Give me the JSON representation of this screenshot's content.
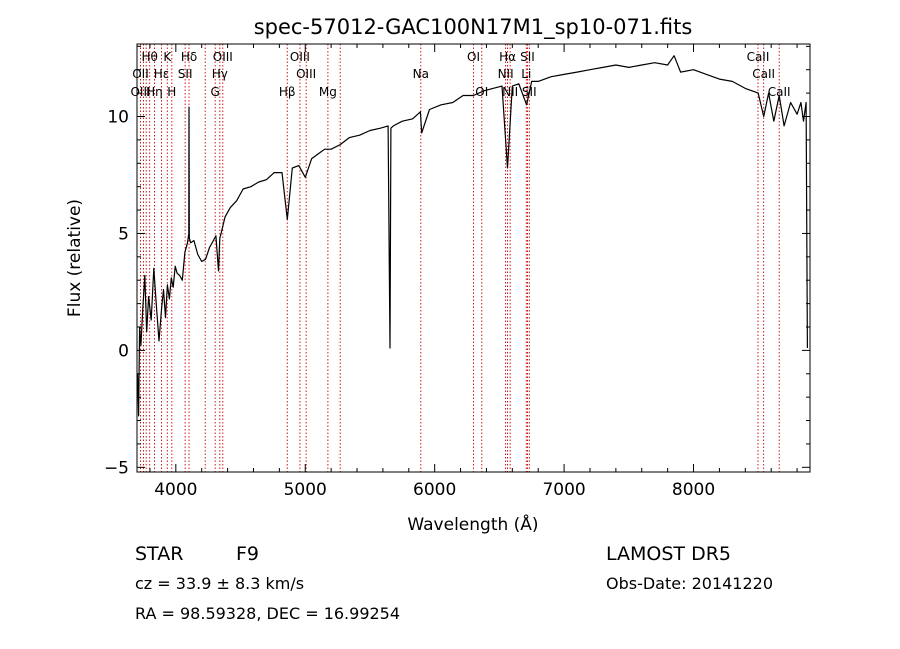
{
  "chart_data": {
    "type": "line",
    "title": "spec-57012-GAC100N17M1_sp10-071.fits",
    "xlabel": "Wavelength (Å)",
    "ylabel": "Flux (relative)",
    "xlim": [
      3700,
      8900
    ],
    "ylim": [
      -5.2,
      13.1
    ],
    "xticks": [
      4000,
      5000,
      6000,
      7000,
      8000
    ],
    "xtick_labels": [
      "4000",
      "5000",
      "6000",
      "7000",
      "8000"
    ],
    "yticks": [
      -5,
      0,
      5,
      10
    ],
    "ytick_labels": [
      "−5",
      "0",
      "5",
      "10"
    ],
    "series": [
      {
        "x": [
          3705,
          3712,
          3720,
          3730,
          3745,
          3760,
          3775,
          3790,
          3810,
          3830,
          3850,
          3870,
          3890,
          3905,
          3920,
          3935,
          3950,
          3965,
          3980,
          3995,
          4010,
          4030,
          4050,
          4070,
          4090,
          4100,
          4102,
          4104,
          4115,
          4140,
          4170,
          4200,
          4230,
          4260,
          4290,
          4310,
          4330,
          4340,
          4350,
          4380,
          4420,
          4470,
          4520,
          4580,
          4640,
          4700,
          4760,
          4820,
          4861,
          4900,
          4950,
          5000,
          5050,
          5100,
          5150,
          5200,
          5270,
          5340,
          5420,
          5500,
          5580,
          5640,
          5655,
          5662,
          5680,
          5750,
          5830,
          5890,
          5900,
          5960,
          6050,
          6140,
          6220,
          6300,
          6380,
          6450,
          6520,
          6563,
          6600,
          6650,
          6710,
          6750,
          6800,
          6900,
          7000,
          7100,
          7200,
          7300,
          7400,
          7500,
          7600,
          7700,
          7800,
          7850,
          7900,
          8000,
          8100,
          8200,
          8300,
          8400,
          8500,
          8542,
          8580,
          8620,
          8662,
          8700,
          8750,
          8800,
          8830,
          8850,
          8870,
          8880
        ],
        "y": [
          -1.0,
          -2.8,
          1.0,
          0.2,
          1.8,
          3.2,
          0.8,
          2.3,
          1.3,
          3.5,
          1.9,
          0.4,
          1.8,
          2.6,
          1.4,
          2.8,
          2.2,
          3.1,
          2.7,
          3.6,
          3.3,
          3.2,
          3.0,
          4.2,
          4.6,
          5.0,
          10.4,
          4.8,
          4.6,
          4.7,
          4.1,
          3.8,
          3.9,
          4.4,
          4.7,
          4.9,
          3.4,
          4.8,
          5.0,
          5.7,
          6.1,
          6.4,
          6.9,
          7.0,
          7.2,
          7.3,
          7.6,
          7.6,
          5.6,
          7.8,
          7.9,
          7.4,
          8.2,
          8.4,
          8.6,
          8.6,
          8.8,
          9.1,
          9.2,
          9.4,
          9.5,
          9.6,
          0.1,
          9.5,
          9.6,
          9.8,
          9.9,
          10.2,
          9.3,
          10.3,
          10.5,
          10.6,
          10.9,
          10.9,
          11.1,
          11.2,
          11.3,
          7.8,
          11.3,
          11.4,
          10.5,
          11.5,
          11.5,
          11.7,
          11.8,
          11.9,
          12.0,
          12.1,
          12.2,
          12.1,
          12.2,
          12.3,
          12.2,
          12.6,
          11.9,
          12.0,
          11.8,
          11.6,
          11.5,
          11.2,
          11.0,
          10.0,
          11.0,
          9.8,
          10.9,
          9.6,
          10.6,
          10.1,
          10.6,
          9.8,
          10.6,
          0.1
        ]
      }
    ],
    "lines": [
      {
        "name": "Hθ",
        "wl": 3798,
        "row": 0
      },
      {
        "name": "K",
        "wl": 3934,
        "row": 0
      },
      {
        "name": "Hδ",
        "wl": 4102,
        "row": 0
      },
      {
        "name": "OIII",
        "wl": 4363,
        "row": 0
      },
      {
        "name": "OIII",
        "wl": 4959,
        "row": 0
      },
      {
        "name": "OI",
        "wl": 6300,
        "row": 0
      },
      {
        "name": "Hα",
        "wl": 6563,
        "row": 0
      },
      {
        "name": "SII",
        "wl": 6717,
        "row": 0
      },
      {
        "name": "CaII",
        "wl": 8498,
        "row": 0
      },
      {
        "name": "OII",
        "wl": 3727,
        "row": 1
      },
      {
        "name": "Hε",
        "wl": 3889,
        "row": 1
      },
      {
        "name": "SII",
        "wl": 4072,
        "row": 1
      },
      {
        "name": "Hγ",
        "wl": 4340,
        "row": 1
      },
      {
        "name": "OIII",
        "wl": 5007,
        "row": 1
      },
      {
        "name": "Na",
        "wl": 5893,
        "row": 1
      },
      {
        "name": "NII",
        "wl": 6548,
        "row": 1
      },
      {
        "name": "Li",
        "wl": 6708,
        "row": 1
      },
      {
        "name": "CaII",
        "wl": 8542,
        "row": 1
      },
      {
        "name": "OIII",
        "wl": 3727,
        "row": 2
      },
      {
        "name": "Hη",
        "wl": 3835,
        "row": 2
      },
      {
        "name": "H",
        "wl": 3969,
        "row": 2
      },
      {
        "name": "G",
        "wl": 4304,
        "row": 2
      },
      {
        "name": "Hβ",
        "wl": 4861,
        "row": 2
      },
      {
        "name": "Mg",
        "wl": 5175,
        "row": 2
      },
      {
        "name": "OI",
        "wl": 6364,
        "row": 2
      },
      {
        "name": "NII",
        "wl": 6583,
        "row": 2
      },
      {
        "name": "SII",
        "wl": 6731,
        "row": 2
      },
      {
        "name": "CaII",
        "wl": 8662,
        "row": 2
      }
    ],
    "extra_lines": [
      3750,
      3771,
      3889,
      4227,
      5270,
      8498
    ]
  },
  "info": {
    "class_label": "STAR",
    "subclass": "F9",
    "survey": "LAMOST DR5",
    "cz": "cz = 33.9 ± 8.3 km/s",
    "obs_date": "Obs-Date: 20141220",
    "coords": "RA =  98.59328, DEC =  16.99254"
  },
  "colors": {
    "spectrum": "#000000",
    "line_marker": "#cc0000"
  }
}
